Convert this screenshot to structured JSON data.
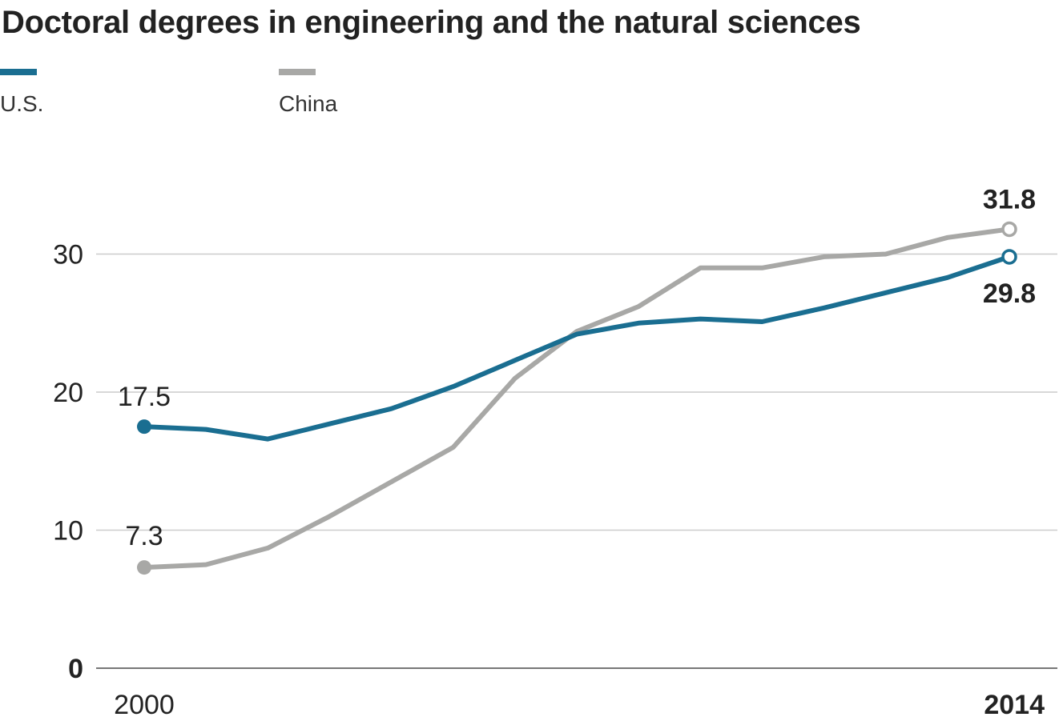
{
  "chart_data": {
    "type": "line",
    "title": "Doctoral degrees in engineering and the natural sciences",
    "x": [
      2000,
      2001,
      2002,
      2003,
      2004,
      2005,
      2006,
      2007,
      2008,
      2009,
      2010,
      2011,
      2012,
      2013,
      2014
    ],
    "x_tick_labels": [
      {
        "value": 2000,
        "label": "2000",
        "bold": false
      },
      {
        "value": 2014,
        "label": "2014",
        "bold": true
      }
    ],
    "y_ticks": [
      {
        "value": 0,
        "label": "0",
        "bold": true
      },
      {
        "value": 10,
        "label": "10",
        "bold": false
      },
      {
        "value": 20,
        "label": "20",
        "bold": false
      },
      {
        "value": 30,
        "label": "30",
        "bold": false
      }
    ],
    "ylim": [
      0,
      33
    ],
    "xlim": [
      2000,
      2014
    ],
    "grid": true,
    "legend_position": "top-left",
    "series": [
      {
        "name": "U.S.",
        "color": "#1a6e91",
        "values": [
          17.5,
          17.3,
          16.6,
          17.7,
          18.8,
          20.4,
          22.3,
          24.2,
          25.0,
          25.3,
          25.1,
          26.1,
          27.2,
          28.3,
          29.8
        ],
        "start_label": "17.5",
        "end_label": "29.8"
      },
      {
        "name": "China",
        "color": "#a8a8a6",
        "values": [
          7.3,
          7.5,
          8.7,
          11.0,
          13.5,
          16.0,
          21.0,
          24.4,
          26.2,
          29.0,
          29.0,
          29.8,
          30.0,
          31.2,
          31.8
        ],
        "start_label": "7.3",
        "end_label": "31.8"
      }
    ]
  }
}
